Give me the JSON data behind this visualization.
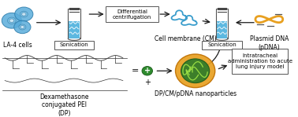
{
  "bg_color": "#ffffff",
  "fig_width": 3.78,
  "fig_height": 1.49,
  "dpi": 100,
  "la4_label": "LA-4 cells",
  "sonication1_label": "Sonication",
  "diff_cent_label": "Differential\ncentrifugation",
  "cm_label": "Cell membrane (CM)",
  "sonication2_label": "Sonication",
  "pdna_label": "Plasmid DNA\n(pDNA)",
  "dp_label": "Dexamethasone\nconjugated PEI\n(DP)",
  "nanoparticle_label": "DP/CM/pDNA nanoparticles",
  "lung_label": "Intratracheal\nadministration to acute\nlung injury model",
  "arrow_color": "#1a1a1a",
  "tube_liquid_color": "#5db8e0",
  "cell_color": "#5aaddb",
  "cm_curve_color": "#3a9dcc",
  "pdna_color": "#e8a020",
  "dp_green_color": "#2e8b2e",
  "nano_outer_color": "#e8a020",
  "nano_inner_color": "#2e7a2e",
  "nano_dna_color": "#88cc44",
  "font_size": 5.5,
  "font_size_box": 5.0
}
